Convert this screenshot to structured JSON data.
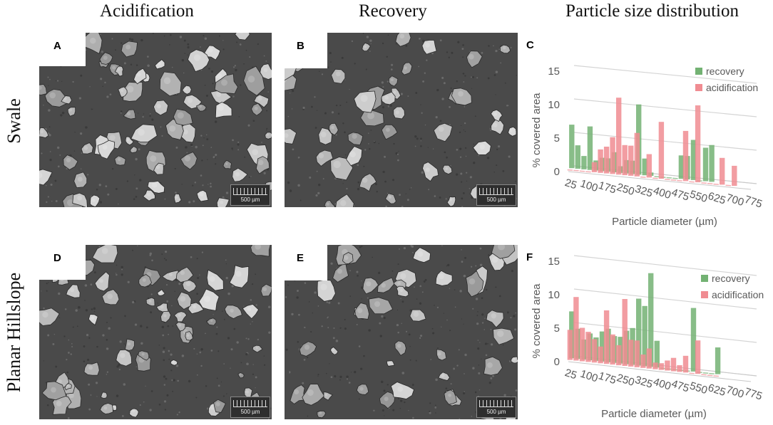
{
  "figure": {
    "column_headers": [
      "Acidification",
      "Recovery",
      "Particle size distribution"
    ],
    "row_headers": [
      "Swale",
      "Planar Hillslope"
    ],
    "panels": [
      {
        "label": "A",
        "scale_bar": "500 µm"
      },
      {
        "label": "B",
        "scale_bar": "500 µm"
      },
      {
        "label": "C"
      },
      {
        "label": "D",
        "scale_bar": "500 µm"
      },
      {
        "label": "E",
        "scale_bar": "500 µm"
      },
      {
        "label": "F"
      }
    ]
  },
  "colors": {
    "recovery": "#73b273",
    "acidification": "#f08c92",
    "sem_background": "#4a4a4a"
  },
  "chart_data": [
    {
      "panel": "C",
      "type": "bar",
      "ylabel": "% covered area",
      "xlabel": "Particle diameter (µm)",
      "ylim": [
        0,
        15
      ],
      "yticks": [
        0,
        5,
        10,
        15
      ],
      "xticks": [
        25,
        100,
        175,
        250,
        325,
        400,
        475,
        550,
        625,
        700,
        775
      ],
      "legend_position": "top-right",
      "series": [
        {
          "name": "recovery",
          "x": [
            25,
            50,
            75,
            100,
            125,
            150,
            175,
            200,
            225,
            250,
            275,
            300,
            325,
            350,
            375,
            400,
            425,
            450,
            475,
            500,
            525,
            550,
            575,
            600
          ],
          "values": [
            6.5,
            3.5,
            2,
            6.5,
            1.5,
            2,
            2,
            3,
            1,
            2,
            2,
            10.5,
            2.5,
            0.5,
            0,
            0,
            0,
            0,
            3.5,
            3.5,
            6,
            0,
            5,
            5.5
          ]
        },
        {
          "name": "acidification",
          "x": [
            25,
            50,
            75,
            100,
            125,
            150,
            175,
            200,
            225,
            250,
            275,
            300,
            325,
            350,
            375,
            400,
            425,
            450,
            475,
            500,
            525,
            550,
            575,
            600,
            625,
            650,
            675,
            700
          ],
          "values": [
            0,
            0,
            0,
            0,
            1.5,
            3.5,
            4,
            5.5,
            11.5,
            4.5,
            4.5,
            6.5,
            0,
            3.5,
            0,
            8.5,
            0,
            0,
            0,
            7.5,
            0,
            11.5,
            0,
            0,
            0,
            4,
            0,
            3
          ]
        }
      ]
    },
    {
      "panel": "F",
      "type": "bar",
      "ylabel": "% covered area",
      "xlabel": "Particle diameter (µm)",
      "ylim": [
        0,
        15
      ],
      "yticks": [
        0,
        5,
        10,
        15
      ],
      "xticks": [
        25,
        100,
        175,
        250,
        325,
        400,
        475,
        550,
        625,
        700,
        775
      ],
      "legend_position": "right",
      "series": [
        {
          "name": "recovery",
          "x": [
            25,
            50,
            75,
            100,
            125,
            150,
            175,
            200,
            225,
            250,
            275,
            300,
            325,
            350,
            375,
            400,
            425,
            450,
            475,
            500,
            525,
            550,
            575,
            600,
            625
          ],
          "values": [
            7,
            4.5,
            3,
            4,
            3.5,
            4.5,
            5,
            4,
            4,
            5,
            5.5,
            10,
            9,
            14,
            4,
            0,
            0,
            0,
            0,
            0,
            9.5,
            0,
            0,
            0,
            4
          ]
        },
        {
          "name": "acidification",
          "x": [
            25,
            50,
            75,
            100,
            125,
            150,
            175,
            200,
            225,
            250,
            275,
            300,
            325,
            350,
            375,
            400,
            425,
            450,
            475,
            500,
            525,
            550,
            575,
            600,
            625
          ],
          "values": [
            4.5,
            9.5,
            5,
            4.5,
            3.5,
            2.5,
            8,
            4.5,
            3,
            10,
            4,
            4,
            2,
            3,
            1,
            1,
            1.5,
            2,
            1,
            2.5,
            0,
            5,
            0,
            0,
            0
          ]
        }
      ]
    }
  ]
}
